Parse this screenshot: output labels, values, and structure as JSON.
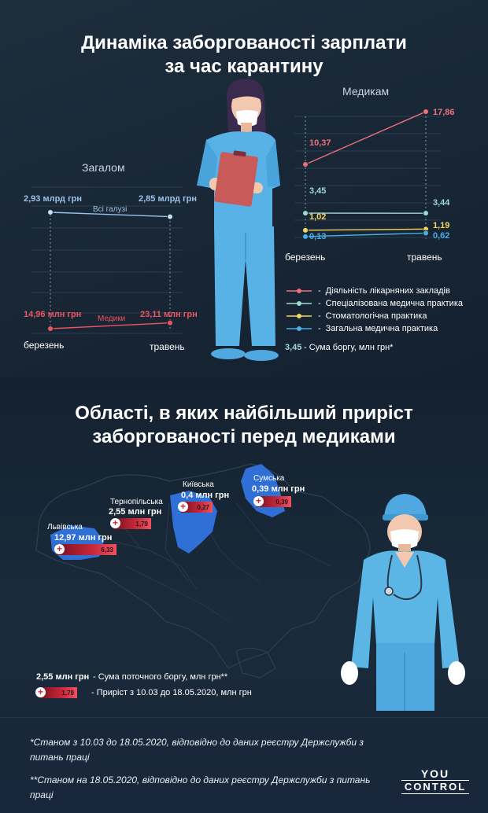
{
  "title": {
    "line1": "Динаміка заборгованості зарплати",
    "line2": "за час карантину"
  },
  "zagalom": {
    "title": "Загалом",
    "start_label": "березень",
    "end_label": "травень",
    "series": [
      {
        "name": "Всі галузі",
        "start_text": "2,93 млрд грн",
        "end_text": "2,85 млрд грн",
        "start": 2.93,
        "end": 2.85,
        "color": "#9cc3e6"
      },
      {
        "name": "Медики",
        "start_text": "14,96 млн грн",
        "end_text": "23,11 млн грн",
        "start": 14.96,
        "end": 23.11,
        "color": "#f0545e"
      }
    ]
  },
  "medykam": {
    "title": "Медикам",
    "start_label": "березень",
    "end_label": "травень",
    "series": [
      {
        "name": "Діяльність лікарняних закладів",
        "start": "10,37",
        "end": "17,86",
        "color": "#f0707a"
      },
      {
        "name": "Спеціалізована медична практика",
        "start": "3,45",
        "end": "3,44",
        "color": "#9fd9d3"
      },
      {
        "name": "Стоматологічна практика",
        "start": "1,02",
        "end": "1,19",
        "color": "#f2d75a"
      },
      {
        "name": "Загальна медична практика",
        "start": "0,13",
        "end": "0,62",
        "color": "#4aaee8"
      }
    ],
    "legend_note_value": "3,45",
    "legend_note_text": "- Сума боргу, млн грн*"
  },
  "chart_data": [
    {
      "type": "line",
      "title": "Загалом",
      "x": [
        "березень",
        "травень"
      ],
      "series": [
        {
          "name": "Всі галузі",
          "values": [
            2.93,
            2.85
          ],
          "unit": "млрд грн"
        },
        {
          "name": "Медики",
          "values": [
            14.96,
            23.11
          ],
          "unit": "млн грн"
        }
      ]
    },
    {
      "type": "line",
      "title": "Медикам",
      "x": [
        "березень",
        "травень"
      ],
      "series": [
        {
          "name": "Діяльність лікарняних закладів",
          "values": [
            10.37,
            17.86
          ]
        },
        {
          "name": "Спеціалізована медична практика",
          "values": [
            3.45,
            3.44
          ]
        },
        {
          "name": "Стоматологічна практика",
          "values": [
            1.02,
            1.19
          ]
        },
        {
          "name": "Загальна медична практика",
          "values": [
            0.13,
            0.62
          ]
        }
      ],
      "ylabel": "Сума боргу, млн грн*"
    }
  ],
  "regions_title": {
    "line1": "Області, в яких найбільший приріст",
    "line2": "заборгованості перед медиками"
  },
  "regions": [
    {
      "name": "Львівська",
      "debt": "12,97 млн грн",
      "growth": "6,33"
    },
    {
      "name": "Тернопільська",
      "debt": "2,55 млн грн",
      "growth": "1,79"
    },
    {
      "name": "Київська",
      "debt": "0,4 млн грн",
      "growth": "0,27"
    },
    {
      "name": "Сумська",
      "debt": "0,39 млн грн",
      "growth": "0,39"
    }
  ],
  "map_legend": {
    "debt_value": "2,55 млн грн",
    "debt_text": "- Сума поточного боргу, млн грн**",
    "growth_value": "1,79",
    "growth_text": "- Приріст з 10.03 до 18.05.2020, млн грн"
  },
  "footnotes": {
    "note1": "*Станом з 10.03 до 18.05.2020, відповідно до даних реєстру Держслужби з питань праці",
    "note2": "**Станом на 18.05.2020, відповідно до даних реєстру Держслужби з питань праці"
  },
  "logo": {
    "line1": "YOU",
    "line2": "CONTROL"
  },
  "colors": {
    "red": "#f0545e",
    "blue_light": "#9cc3e6",
    "background": "#15222f",
    "region_blue": "#2f6fd6"
  }
}
